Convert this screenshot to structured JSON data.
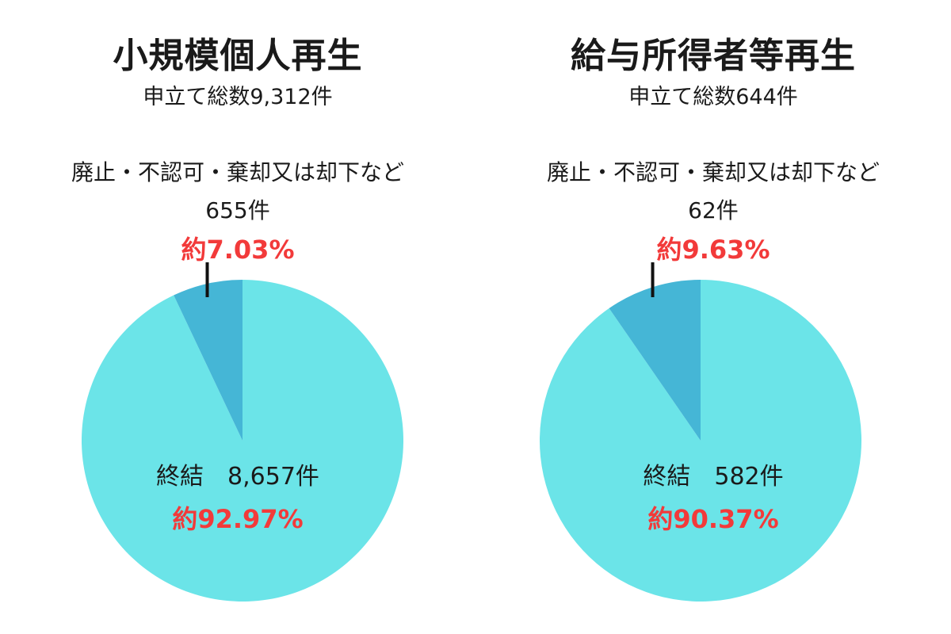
{
  "chart_data": [
    {
      "type": "pie",
      "title": "小規模個人再生",
      "subtitle": "申立て総数9,312件",
      "categories": [
        "廃止・不認可・棄却又は却下など",
        "終結"
      ],
      "values": [
        655,
        8657
      ],
      "counts": [
        "655件",
        "8,657件"
      ],
      "percents": [
        "約7.03%",
        "約92.97%"
      ],
      "colors": [
        "#45b6d6",
        "#6be4e8"
      ],
      "minor": {
        "label": "廃止・不認可・棄却又は却下など",
        "count": "655件",
        "percent": "約7.03%"
      },
      "major": {
        "label": "終結",
        "count": "8,657件",
        "percent": "約92.97%"
      }
    },
    {
      "type": "pie",
      "title": "給与所得者等再生",
      "subtitle": "申立て総数644件",
      "categories": [
        "廃止・不認可・棄却又は却下など",
        "終結"
      ],
      "values": [
        62,
        582
      ],
      "counts": [
        "62件",
        "582件"
      ],
      "percents": [
        "約9.63%",
        "約90.37%"
      ],
      "colors": [
        "#45b6d6",
        "#6be4e8"
      ],
      "minor": {
        "label": "廃止・不認可・棄却又は却下など",
        "count": "62件",
        "percent": "約9.63%"
      },
      "major": {
        "label": "終結",
        "count": "582件",
        "percent": "約90.37%"
      }
    }
  ]
}
